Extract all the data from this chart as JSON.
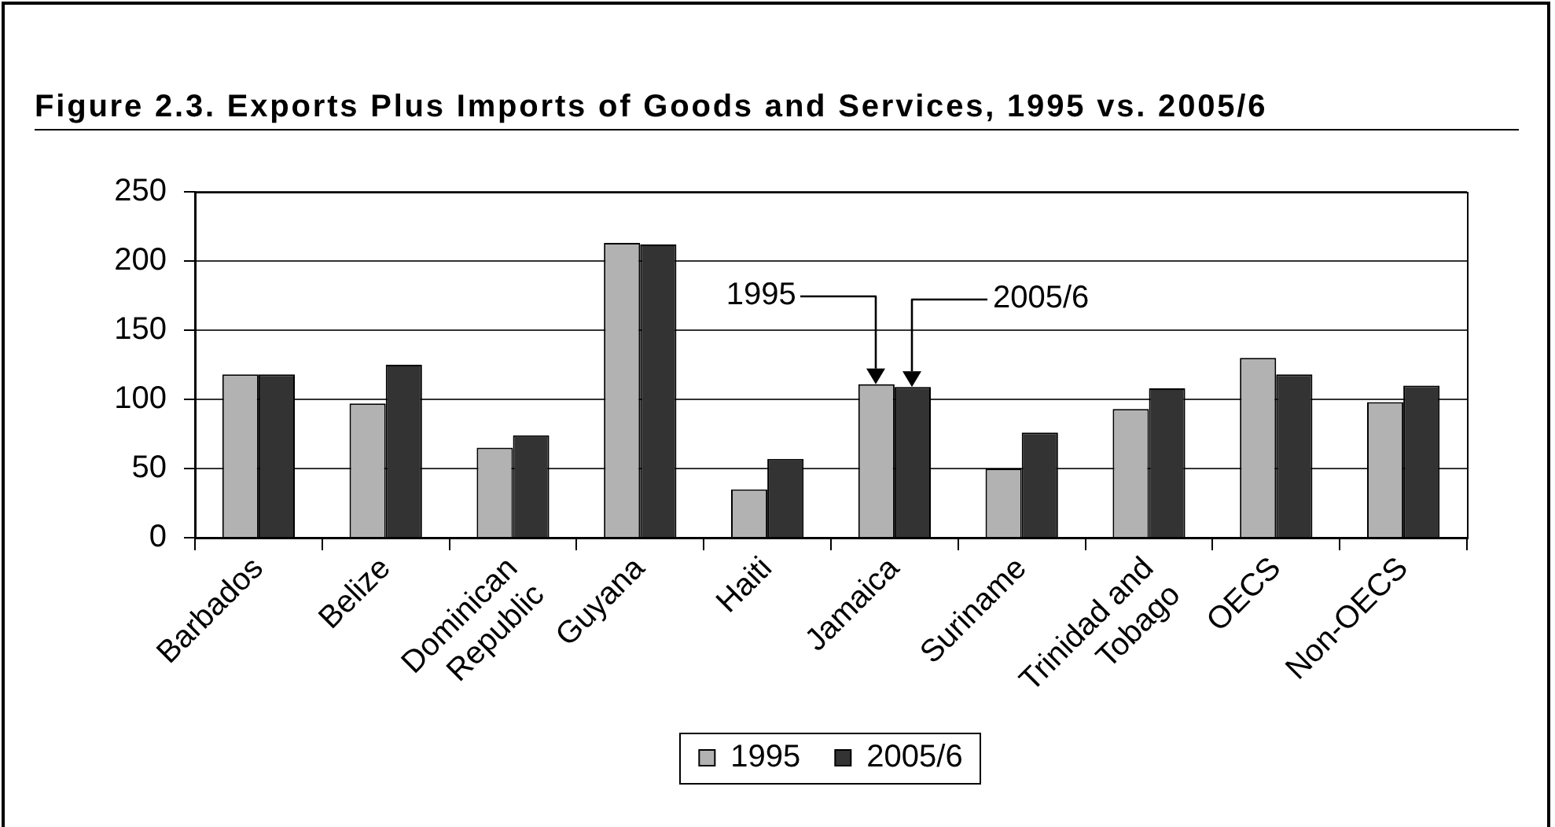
{
  "chart_data": {
    "type": "bar",
    "title": "Figure 2.3. Exports Plus Imports of Goods and Services, 1995 vs. 2005/6",
    "categories": [
      "Barbados",
      "Belize",
      "Dominican Republic",
      "Guyana",
      "Haiti",
      "Jamaica",
      "Suriname",
      "Trinidad and Tobago",
      "OECS",
      "Non-OECS"
    ],
    "series": [
      {
        "name": "1995",
        "color": "#b2b2b2",
        "values": [
          118,
          97,
          65,
          213,
          35,
          111,
          50,
          93,
          130,
          98
        ]
      },
      {
        "name": "2005/6",
        "color": "#333333",
        "values": [
          118,
          125,
          74,
          212,
          57,
          109,
          76,
          108,
          118,
          110
        ]
      }
    ],
    "ylim": [
      0,
      250
    ],
    "yticks": [
      0,
      50,
      100,
      150,
      200,
      250
    ],
    "grid": "y",
    "legend": "bottom",
    "annotations": [
      "1995",
      "2005/6"
    ]
  }
}
